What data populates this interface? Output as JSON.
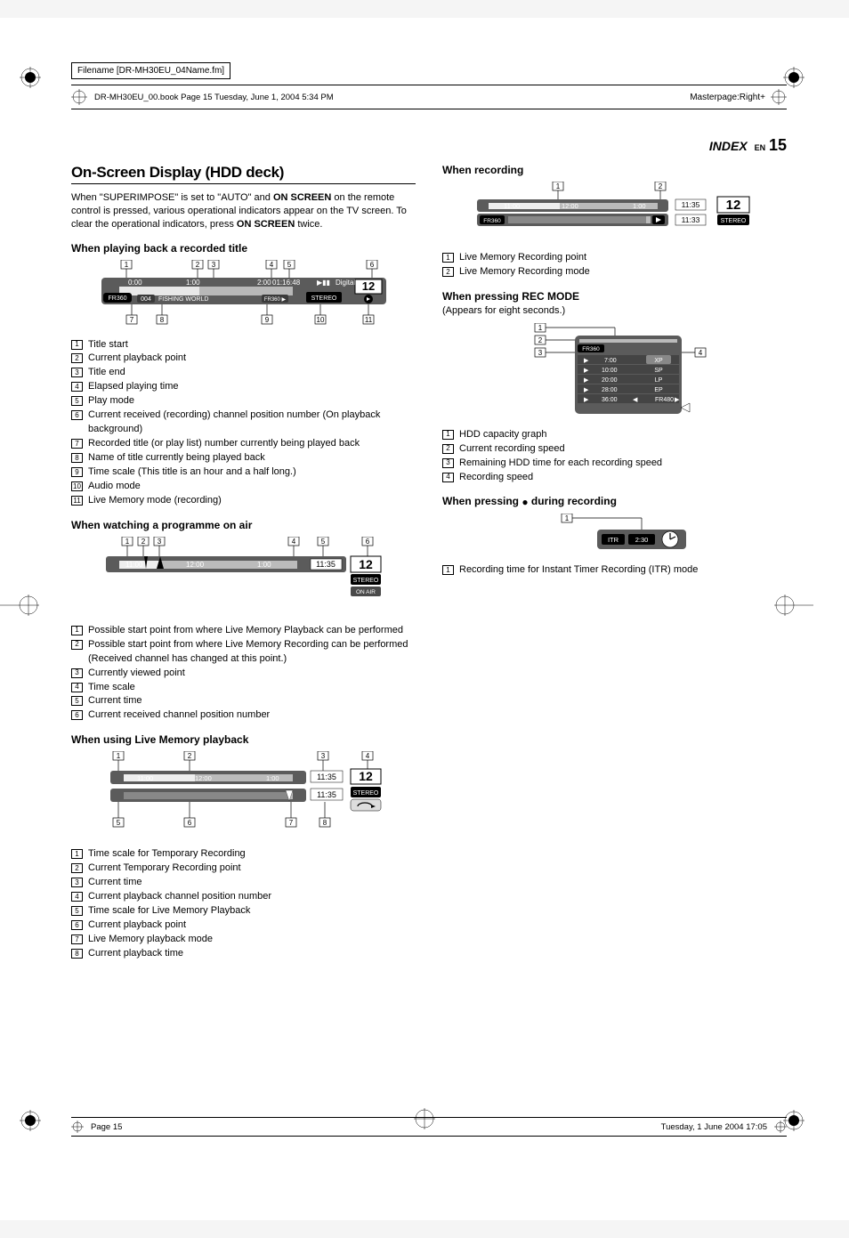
{
  "meta": {
    "filename_label": "Filename [DR-MH30EU_04Name.fm]",
    "bookline_left": "DR-MH30EU_00.book  Page 15  Tuesday, June 1, 2004  5:34 PM",
    "masterpage": "Masterpage:Right+",
    "index_label": "INDEX",
    "en_label": "EN",
    "page_number": "15",
    "footer_left": "Page 15",
    "footer_right": "Tuesday, 1 June 2004  17:05"
  },
  "left": {
    "title": "On-Screen Display (HDD deck)",
    "intro_1": "When \"SUPERIMPOSE\" is set to \"AUTO\" and ",
    "intro_bold1": "ON SCREEN",
    "intro_2": " on the remote control is pressed, various operational indicators appear on the TV screen. To clear the operational indicators, press ",
    "intro_bold2": "ON SCREEN",
    "intro_3": " twice.",
    "s1": {
      "heading": "When playing back a recorded title",
      "fig": {
        "callout_nums": [
          "1",
          "2",
          "3",
          "4",
          "5",
          "6",
          "7",
          "8",
          "9",
          "10",
          "11"
        ],
        "bar_bg": "#5b5b5b",
        "bar_fg": "#b8b8b8",
        "fr_label": "FR360",
        "titleno": "004",
        "titlename": "FISHING WORLD",
        "t0": "0:00",
        "t1": "1:00",
        "t2": "2:00",
        "elapsed": "01:16:48",
        "mode": "Digital",
        "ch": "12",
        "stereo": "STEREO"
      },
      "items": [
        "Title start",
        "Current playback point",
        "Title end",
        "Elapsed playing time",
        "Play mode",
        "Current received (recording) channel position number (On playback background)",
        "Recorded title (or play list) number currently being played back",
        "Name of title currently being played back",
        "Time scale (This title is an hour and a half long.)",
        "Audio mode",
        "Live Memory mode (recording)"
      ]
    },
    "s2": {
      "heading": "When watching a programme on air",
      "fig": {
        "t0": "11:00",
        "t1": "12:00",
        "t2": "1:00",
        "time": "11:35",
        "ch": "12",
        "stereo": "STEREO",
        "onair": "ON AIR"
      },
      "items": [
        "Possible start point from where Live Memory Playback can be performed",
        "Possible start point from where Live Memory Recording can be performed\n(Received channel has changed at this point.)",
        "Currently viewed point",
        "Time scale",
        "Current time",
        "Current received channel position number"
      ]
    },
    "s3": {
      "heading": "When using Live Memory playback",
      "fig": {
        "t0": "11:00",
        "t1": "12:00",
        "t2": "1:00",
        "time1": "11:35",
        "time2": "11:35",
        "ch": "12",
        "stereo": "STEREO"
      },
      "items": [
        "Time scale for Temporary Recording",
        "Current Temporary Recording point",
        "Current time",
        "Current playback channel position number",
        "Time scale for Live Memory Playback",
        "Current playback point",
        "Live Memory playback mode",
        "Current playback time"
      ]
    }
  },
  "right": {
    "s1": {
      "heading": "When recording",
      "fig": {
        "t0": "11:00",
        "t1": "12:00",
        "t2": "1:00",
        "time1": "11:35",
        "time2": "11:33",
        "ch": "12",
        "stereo": "STEREO",
        "fr": "FR360"
      },
      "items": [
        "Live Memory Recording point",
        "Live Memory Recording mode"
      ]
    },
    "s2": {
      "heading": "When pressing REC MODE",
      "note": "(Appears for eight seconds.)",
      "fig": {
        "fr1": "FR360",
        "fr2": "FR480",
        "rows": [
          {
            "t": "7:00",
            "m": "XP"
          },
          {
            "t": "10:00",
            "m": "SP"
          },
          {
            "t": "20:00",
            "m": "LP"
          },
          {
            "t": "28:00",
            "m": "EP"
          },
          {
            "t": "36:00",
            "m": ""
          }
        ]
      },
      "items": [
        "HDD capacity graph",
        "Current recording speed",
        "Remaining HDD time for each recording speed",
        "Recording speed"
      ]
    },
    "s3": {
      "heading_prefix": "When pressing ",
      "heading_suffix": " during recording",
      "fig": {
        "itr": "ITR",
        "time": "2:30"
      },
      "items": [
        "Recording time for Instant Timer Recording (ITR) mode"
      ]
    }
  },
  "colors": {
    "dark": "#4a4a4a",
    "mid": "#808080",
    "light": "#c8c8c8",
    "black": "#000000",
    "white": "#ffffff"
  }
}
